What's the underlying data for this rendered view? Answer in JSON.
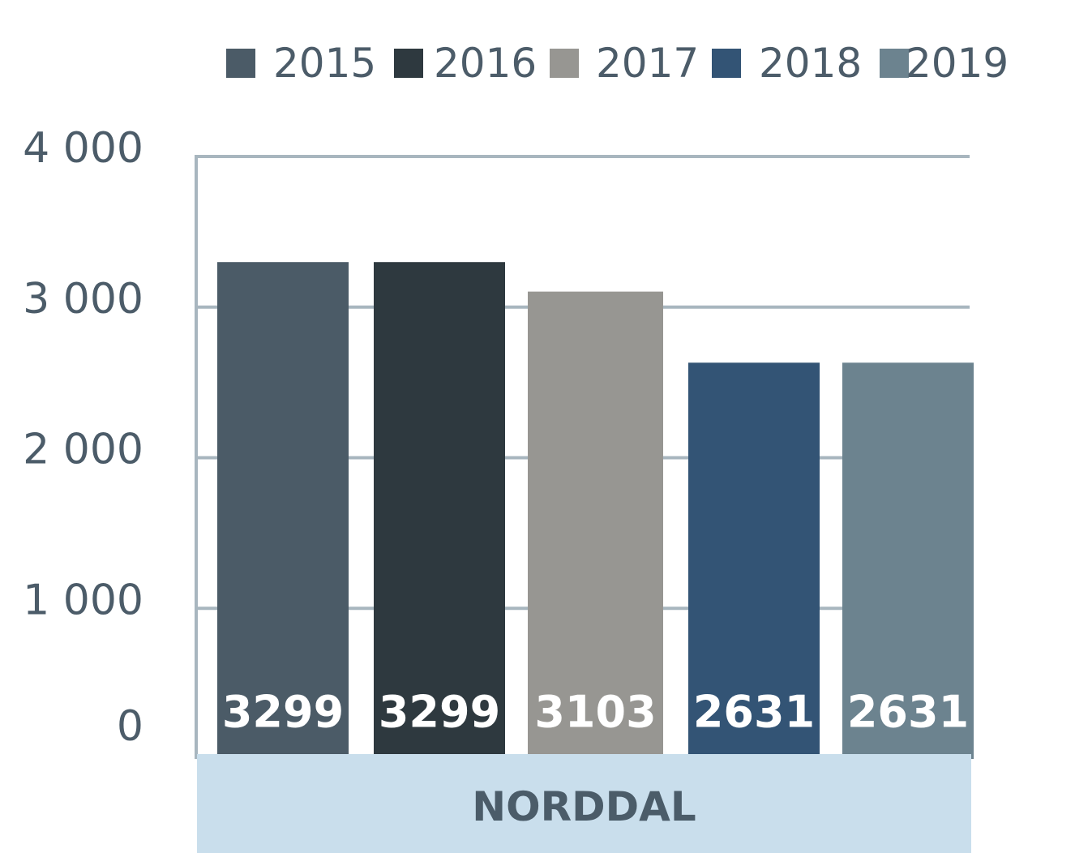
{
  "chart_data": {
    "type": "bar",
    "categories": [
      "NORDDAL"
    ],
    "series": [
      {
        "name": "2015",
        "values": [
          3299
        ],
        "color": "#4b5b67"
      },
      {
        "name": "2016",
        "values": [
          3299
        ],
        "color": "#2e393f"
      },
      {
        "name": "2017",
        "values": [
          3103
        ],
        "color": "#979692"
      },
      {
        "name": "2018",
        "values": [
          2631
        ],
        "color": "#335475"
      },
      {
        "name": "2019",
        "values": [
          2631
        ],
        "color": "#6c838f"
      }
    ],
    "y_ticks": [
      {
        "value": 0,
        "label": "0"
      },
      {
        "value": 1000,
        "label": "1 000"
      },
      {
        "value": 2000,
        "label": "2 000"
      },
      {
        "value": 3000,
        "label": "3 000"
      },
      {
        "value": 4000,
        "label": "4 000"
      }
    ],
    "ylim": [
      0,
      4000
    ],
    "grid": true,
    "legend_position": "top",
    "colors": {
      "gridline": "#a8b6bf",
      "category_band": "#c9deec",
      "text": "#4c5c69",
      "bar_label": "#ffffff"
    }
  }
}
